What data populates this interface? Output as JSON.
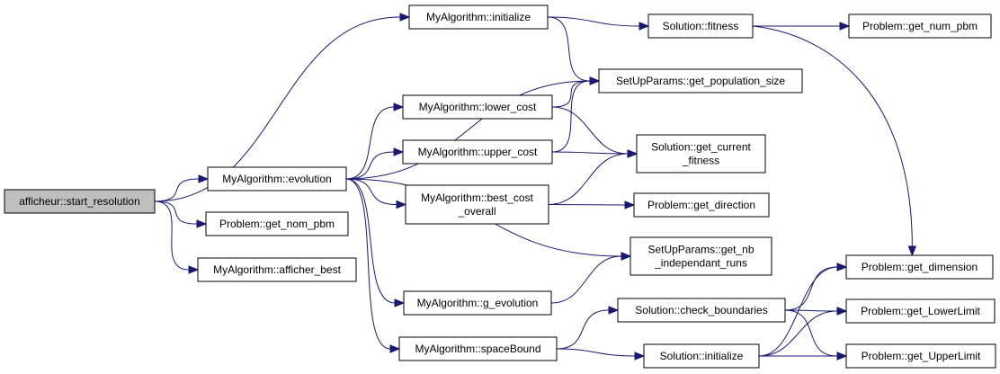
{
  "diagram": {
    "colors": {
      "edge": "#191970",
      "root_fill": "#bfbfbf",
      "node_fill": "#ffffff",
      "border": "#000000"
    },
    "nodes": [
      {
        "id": "start_resolution",
        "lines": [
          "afficheur::start_resolution"
        ],
        "root": true
      },
      {
        "id": "evolution",
        "lines": [
          "MyAlgorithm::evolution"
        ]
      },
      {
        "id": "get_nom_pbm",
        "lines": [
          "Problem::get_nom_pbm"
        ]
      },
      {
        "id": "afficher_best",
        "lines": [
          "MyAlgorithm::afficher_best"
        ]
      },
      {
        "id": "initialize",
        "lines": [
          "MyAlgorithm::initialize"
        ]
      },
      {
        "id": "lower_cost",
        "lines": [
          "MyAlgorithm::lower_cost"
        ]
      },
      {
        "id": "upper_cost",
        "lines": [
          "MyAlgorithm::upper_cost"
        ]
      },
      {
        "id": "best_cost_overall",
        "lines": [
          "MyAlgorithm::best_cost",
          "_overall"
        ]
      },
      {
        "id": "g_evolution",
        "lines": [
          "MyAlgorithm::g_evolution"
        ]
      },
      {
        "id": "spaceBound",
        "lines": [
          "MyAlgorithm::spaceBound"
        ]
      },
      {
        "id": "fitness",
        "lines": [
          "Solution::fitness"
        ]
      },
      {
        "id": "get_population_size",
        "lines": [
          "SetUpParams::get_population_size"
        ]
      },
      {
        "id": "get_current_fitness",
        "lines": [
          "Solution::get_current",
          "_fitness"
        ]
      },
      {
        "id": "get_direction",
        "lines": [
          "Problem::get_direction"
        ]
      },
      {
        "id": "get_nb_independant_runs",
        "lines": [
          "SetUpParams::get_nb",
          "_independant_runs"
        ]
      },
      {
        "id": "check_boundaries",
        "lines": [
          "Solution::check_boundaries"
        ]
      },
      {
        "id": "sol_initialize",
        "lines": [
          "Solution::initialize"
        ]
      },
      {
        "id": "get_num_pbm",
        "lines": [
          "Problem::get_num_pbm"
        ]
      },
      {
        "id": "get_dimension",
        "lines": [
          "Problem::get_dimension"
        ]
      },
      {
        "id": "get_LowerLimit",
        "lines": [
          "Problem::get_LowerLimit"
        ]
      },
      {
        "id": "get_UpperLimit",
        "lines": [
          "Problem::get_UpperLimit"
        ]
      }
    ],
    "edges": [
      [
        "start_resolution",
        "initialize"
      ],
      [
        "start_resolution",
        "evolution"
      ],
      [
        "start_resolution",
        "get_nom_pbm"
      ],
      [
        "start_resolution",
        "afficher_best"
      ],
      [
        "initialize",
        "fitness"
      ],
      [
        "initialize",
        "get_population_size"
      ],
      [
        "fitness",
        "get_num_pbm"
      ],
      [
        "fitness",
        "get_dimension"
      ],
      [
        "evolution",
        "get_population_size"
      ],
      [
        "evolution",
        "lower_cost"
      ],
      [
        "evolution",
        "upper_cost"
      ],
      [
        "evolution",
        "best_cost_overall"
      ],
      [
        "evolution",
        "get_nb_independant_runs"
      ],
      [
        "evolution",
        "g_evolution"
      ],
      [
        "evolution",
        "spaceBound"
      ],
      [
        "lower_cost",
        "get_population_size"
      ],
      [
        "lower_cost",
        "get_current_fitness"
      ],
      [
        "upper_cost",
        "get_population_size"
      ],
      [
        "upper_cost",
        "get_current_fitness"
      ],
      [
        "best_cost_overall",
        "get_current_fitness"
      ],
      [
        "best_cost_overall",
        "get_direction"
      ],
      [
        "g_evolution",
        "get_nb_independant_runs"
      ],
      [
        "spaceBound",
        "check_boundaries"
      ],
      [
        "spaceBound",
        "sol_initialize"
      ],
      [
        "check_boundaries",
        "get_dimension"
      ],
      [
        "check_boundaries",
        "get_LowerLimit"
      ],
      [
        "check_boundaries",
        "get_UpperLimit"
      ],
      [
        "sol_initialize",
        "get_dimension"
      ],
      [
        "sol_initialize",
        "get_LowerLimit"
      ],
      [
        "sol_initialize",
        "get_UpperLimit"
      ]
    ]
  }
}
